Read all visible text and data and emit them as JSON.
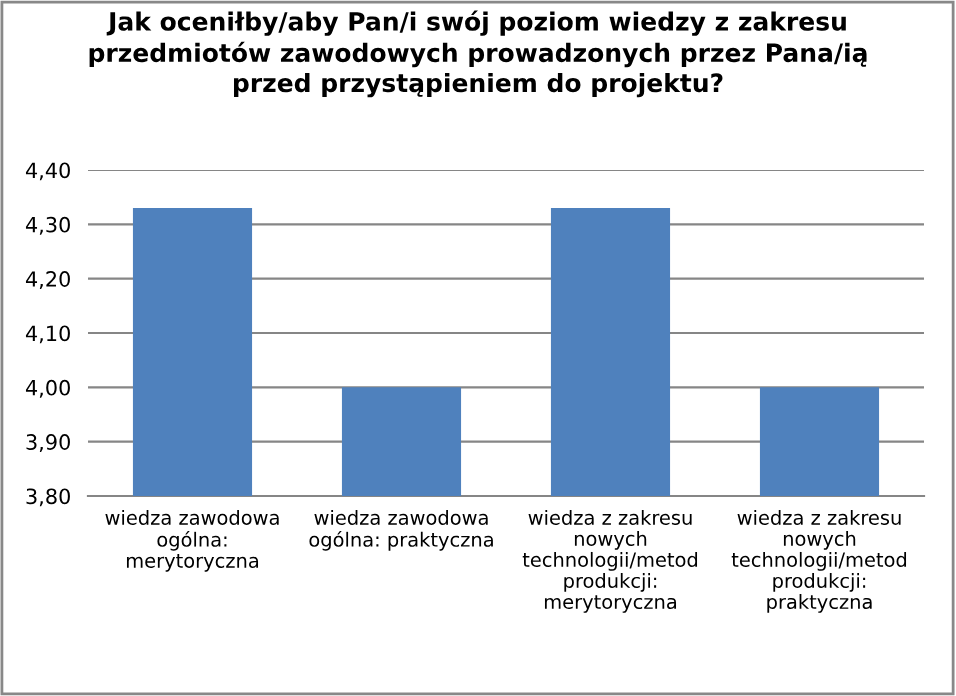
{
  "chart_data": {
    "type": "bar",
    "title": "Jak oceniłby/aby Pan/i swój poziom wiedzy z zakresu\nprzedmiotów zawodowych prowadzonych przez Pana/ią\nprzed przystąpieniem do projektu?",
    "categories": [
      "wiedza zawodowa\nogólna:\nmerytoryczna",
      "wiedza zawodowa\nogólna: praktyczna",
      "wiedza z zakresu\nnowych\ntechnologii/metod\nprodukcji:\nmerytoryczna",
      "wiedza z zakresu\nnowych\ntechnologii/metod\nprodukcji:\npraktyczna"
    ],
    "values": [
      4.33,
      4.0,
      4.33,
      4.0
    ],
    "color": "#4f81bd",
    "ylim": [
      3.8,
      4.4
    ],
    "yticks": [
      {
        "value": 3.8,
        "label": "3,80"
      },
      {
        "value": 3.9,
        "label": "3,90"
      },
      {
        "value": 4.0,
        "label": "4,00"
      },
      {
        "value": 4.1,
        "label": "4,10"
      },
      {
        "value": 4.2,
        "label": "4,20"
      },
      {
        "value": 4.3,
        "label": "4,30"
      },
      {
        "value": 4.4,
        "label": "4,40"
      }
    ],
    "grid": "y",
    "legend": false
  }
}
